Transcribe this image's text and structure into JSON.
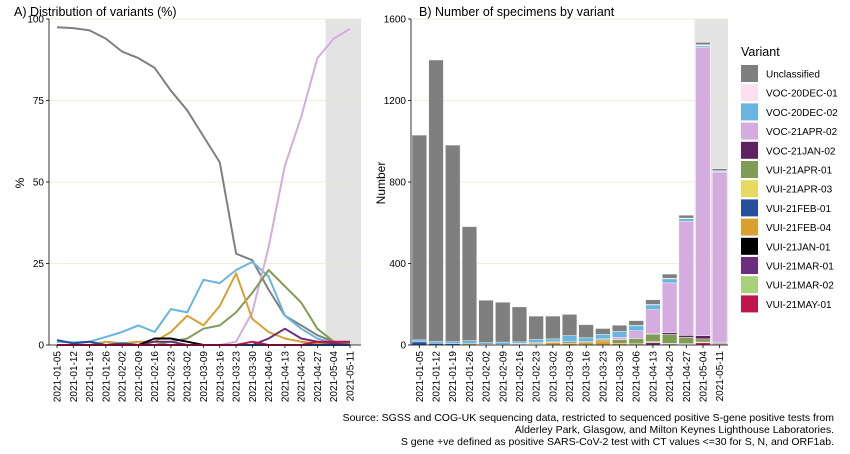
{
  "chart_data": [
    {
      "type": "line",
      "title": "A) Distribution of variants (%)",
      "xlabel": "",
      "ylabel": "%",
      "ylim": [
        0,
        100
      ],
      "yticks": [
        0,
        25,
        50,
        75,
        100
      ],
      "grid": true,
      "x": [
        "2021-01-05",
        "2021-01-12",
        "2021-01-19",
        "2021-01-26",
        "2021-02-02",
        "2021-02-09",
        "2021-02-16",
        "2021-02-23",
        "2021-03-02",
        "2021-03-09",
        "2021-03-16",
        "2021-03-23",
        "2021-03-30",
        "2021-04-06",
        "2021-04-13",
        "2021-04-20",
        "2021-04-27",
        "2021-05-04",
        "2021-05-11"
      ],
      "shaded_from": "2021-05-04",
      "series": [
        {
          "name": "Unclassified",
          "color": "#808080",
          "values": [
            97.5,
            97.2,
            96.5,
            94,
            90,
            88,
            85,
            78,
            72,
            64,
            56,
            28,
            26,
            17,
            9,
            6,
            3,
            1,
            0.5
          ]
        },
        {
          "name": "VOC-20DEC-02",
          "color": "#67b5e0",
          "values": [
            1,
            0.8,
            1,
            2.5,
            4,
            6,
            4,
            11,
            10,
            20,
            19,
            23,
            25.5,
            21,
            9,
            5,
            2,
            0.5,
            0.5
          ]
        },
        {
          "name": "VOC-21APR-02",
          "color": "#d4acdf",
          "values": [
            0,
            0,
            0,
            0,
            0,
            0,
            0,
            0,
            0,
            0,
            0,
            1,
            10,
            30,
            55,
            70,
            88,
            94,
            97
          ]
        },
        {
          "name": "VUI-21APR-01",
          "color": "#7f9c55",
          "values": [
            0,
            0,
            0,
            0,
            0,
            0,
            0,
            1,
            2,
            5,
            6,
            10,
            16,
            23,
            18,
            13,
            5,
            1,
            0.5
          ]
        },
        {
          "name": "VUI-21FEB-04",
          "color": "#d9a030",
          "values": [
            0,
            0,
            0,
            1,
            0.5,
            1,
            1,
            4,
            9,
            6,
            12,
            22,
            8,
            4,
            2,
            1,
            0.5,
            0.5,
            0
          ]
        },
        {
          "name": "VUI-21MAR-01",
          "color": "#6b2f7e",
          "values": [
            0,
            0,
            0,
            0,
            0,
            0,
            1,
            1,
            0,
            0,
            0,
            0,
            0,
            2,
            5,
            2,
            1,
            0.5,
            0
          ]
        },
        {
          "name": "VUI-21JAN-01",
          "color": "#000000",
          "values": [
            0,
            0,
            0,
            0,
            0,
            0,
            2,
            2,
            1,
            0,
            0,
            0,
            0,
            0,
            0,
            0,
            0,
            0,
            0
          ]
        },
        {
          "name": "VUI-21FEB-01",
          "color": "#264f9e",
          "values": [
            1.5,
            0.5,
            1,
            0,
            0.5,
            0,
            0,
            0,
            0,
            0,
            0,
            0,
            0,
            0,
            0,
            0,
            0,
            0,
            0
          ]
        },
        {
          "name": "VUI-21MAY-01",
          "color": "#c0144d",
          "values": [
            0,
            0,
            0,
            0,
            0,
            0,
            0,
            0,
            0,
            0,
            0,
            0,
            1,
            0,
            0,
            0,
            1,
            1,
            1
          ]
        }
      ]
    },
    {
      "type": "bar",
      "stacked": true,
      "title": "B) Number of specimens by variant",
      "xlabel": "",
      "ylabel": "Number",
      "ylim": [
        0,
        1600
      ],
      "yticks": [
        0,
        400,
        800,
        1200,
        1600
      ],
      "grid": true,
      "categories": [
        "2021-01-05",
        "2021-01-12",
        "2021-01-19",
        "2021-01-26",
        "2021-02-02",
        "2021-02-09",
        "2021-02-16",
        "2021-02-23",
        "2021-03-02",
        "2021-03-09",
        "2021-03-16",
        "2021-03-23",
        "2021-03-30",
        "2021-04-06",
        "2021-04-13",
        "2021-04-20",
        "2021-04-27",
        "2021-05-04",
        "2021-05-11"
      ],
      "shaded_from": "2021-05-04",
      "series": [
        {
          "name": "VUI-21MAY-01",
          "color": "#c0144d",
          "values": [
            0,
            0,
            0,
            0,
            0,
            0,
            0,
            0,
            0,
            0,
            0,
            0,
            0,
            0,
            0,
            0,
            2,
            12,
            5
          ]
        },
        {
          "name": "VUI-21FEB-01",
          "color": "#264f9e",
          "values": [
            15,
            8,
            6,
            0,
            2,
            0,
            0,
            0,
            0,
            0,
            0,
            0,
            0,
            0,
            0,
            0,
            0,
            0,
            0
          ]
        },
        {
          "name": "VUI-21JAN-01",
          "color": "#000000",
          "values": [
            0,
            0,
            0,
            0,
            0,
            0,
            4,
            3,
            1,
            0,
            0,
            0,
            0,
            0,
            0,
            0,
            0,
            0,
            0
          ]
        },
        {
          "name": "VUI-21MAR-01",
          "color": "#6b2f7e",
          "values": [
            0,
            0,
            0,
            0,
            0,
            0,
            1,
            1,
            0,
            0,
            0,
            0,
            0,
            2,
            12,
            5,
            2,
            1,
            0
          ]
        },
        {
          "name": "VUI-21FEB-04",
          "color": "#d9a030",
          "values": [
            0,
            0,
            0,
            6,
            1,
            2,
            2,
            6,
            12,
            9,
            11,
            20,
            9,
            4,
            5,
            3,
            3,
            2,
            0
          ]
        },
        {
          "name": "VUI-21APR-01",
          "color": "#7f9c55",
          "values": [
            0,
            0,
            0,
            0,
            0,
            0,
            0,
            1,
            3,
            7,
            6,
            9,
            17,
            26,
            35,
            44,
            30,
            15,
            5
          ]
        },
        {
          "name": "VOC-21JAN-02",
          "color": "#5e2161",
          "values": [
            0,
            0,
            0,
            0,
            0,
            0,
            0,
            0,
            0,
            0,
            0,
            0,
            0,
            0,
            4,
            8,
            10,
            15,
            4
          ]
        },
        {
          "name": "VOC-21APR-02",
          "color": "#d4acdf",
          "values": [
            0,
            0,
            0,
            0,
            0,
            0,
            0,
            0,
            0,
            0,
            0,
            1,
            12,
            38,
            118,
            245,
            560,
            1415,
            835
          ]
        },
        {
          "name": "VOC-20DEC-02",
          "color": "#67b5e0",
          "values": [
            10,
            11,
            10,
            15,
            9,
            12,
            8,
            16,
            14,
            30,
            18,
            22,
            28,
            24,
            24,
            20,
            13,
            8,
            4
          ]
        },
        {
          "name": "VOC-20DEC-01",
          "color": "#fde0ef",
          "values": [
            0,
            0,
            0,
            0,
            0,
            0,
            0,
            0,
            0,
            0,
            0,
            0,
            0,
            2,
            1,
            2,
            3,
            5,
            2
          ]
        },
        {
          "name": "Unclassified",
          "color": "#7f7f7f",
          "values": [
            1005,
            1380,
            965,
            560,
            208,
            196,
            172,
            115,
            112,
            104,
            65,
            29,
            31,
            24,
            23,
            21,
            14,
            12,
            10
          ]
        }
      ]
    }
  ],
  "legend": {
    "title": "Variant",
    "items": [
      {
        "label": "Unclassified",
        "color": "#7f7f7f"
      },
      {
        "label": "VOC-20DEC-01",
        "color": "#fde0ef"
      },
      {
        "label": "VOC-20DEC-02",
        "color": "#67b5e0"
      },
      {
        "label": "VOC-21APR-02",
        "color": "#d4acdf"
      },
      {
        "label": "VOC-21JAN-02",
        "color": "#5e2161"
      },
      {
        "label": "VUI-21APR-01",
        "color": "#7f9c55"
      },
      {
        "label": "VUI-21APR-03",
        "color": "#e6d95f"
      },
      {
        "label": "VUI-21FEB-01",
        "color": "#264f9e"
      },
      {
        "label": "VUI-21FEB-04",
        "color": "#d9a030"
      },
      {
        "label": "VUI-21JAN-01",
        "color": "#000000"
      },
      {
        "label": "VUI-21MAR-01",
        "color": "#6b2f7e"
      },
      {
        "label": "VUI-21MAR-02",
        "color": "#a6d17a"
      },
      {
        "label": "VUI-21MAY-01",
        "color": "#c0144d"
      }
    ]
  },
  "source": {
    "line1": "Source: SGSS and COG-UK sequencing data, restricted to sequenced positive S-gene positive tests from",
    "line2": "Alderley Park, Glasgow, and Milton Keynes Lighthouse Laboratories.",
    "line3": "S gene +ve defined as positive SARS-CoV-2 test with CT values <=30 for S, N, and ORF1ab."
  }
}
